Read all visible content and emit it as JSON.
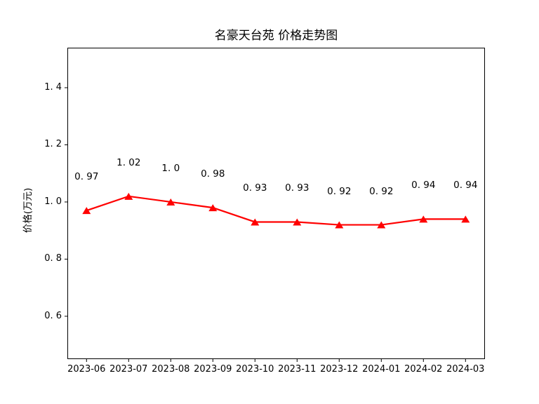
{
  "figure": {
    "background": "#ffffff",
    "text_color": "#000000",
    "axis_color": "#000000"
  },
  "chart_data": {
    "type": "line",
    "title": "名豪天台苑 价格走势图",
    "xlabel": "",
    "ylabel": "价格(万元)",
    "categories": [
      "2023-06",
      "2023-07",
      "2023-08",
      "2023-09",
      "2023-10",
      "2023-11",
      "2023-12",
      "2024-01",
      "2024-02",
      "2024-03"
    ],
    "values": [
      0.97,
      1.02,
      1.0,
      0.98,
      0.93,
      0.93,
      0.92,
      0.92,
      0.94,
      0.94
    ],
    "point_labels": [
      "0. 97",
      "1. 02",
      "1. 0",
      "0. 98",
      "0. 93",
      "0. 93",
      "0. 92",
      "0. 92",
      "0. 94",
      "0. 94"
    ],
    "yticks": {
      "values": [
        0.6,
        0.8,
        1.0,
        1.2,
        1.4
      ],
      "labels": [
        "0. 6",
        "0. 8",
        "1. 0",
        "1. 2",
        "1. 4"
      ]
    },
    "ylim": [
      0.45,
      1.54
    ],
    "line_color": "#ff0000",
    "marker": "triangle-up",
    "grid": false,
    "legend": "none"
  }
}
